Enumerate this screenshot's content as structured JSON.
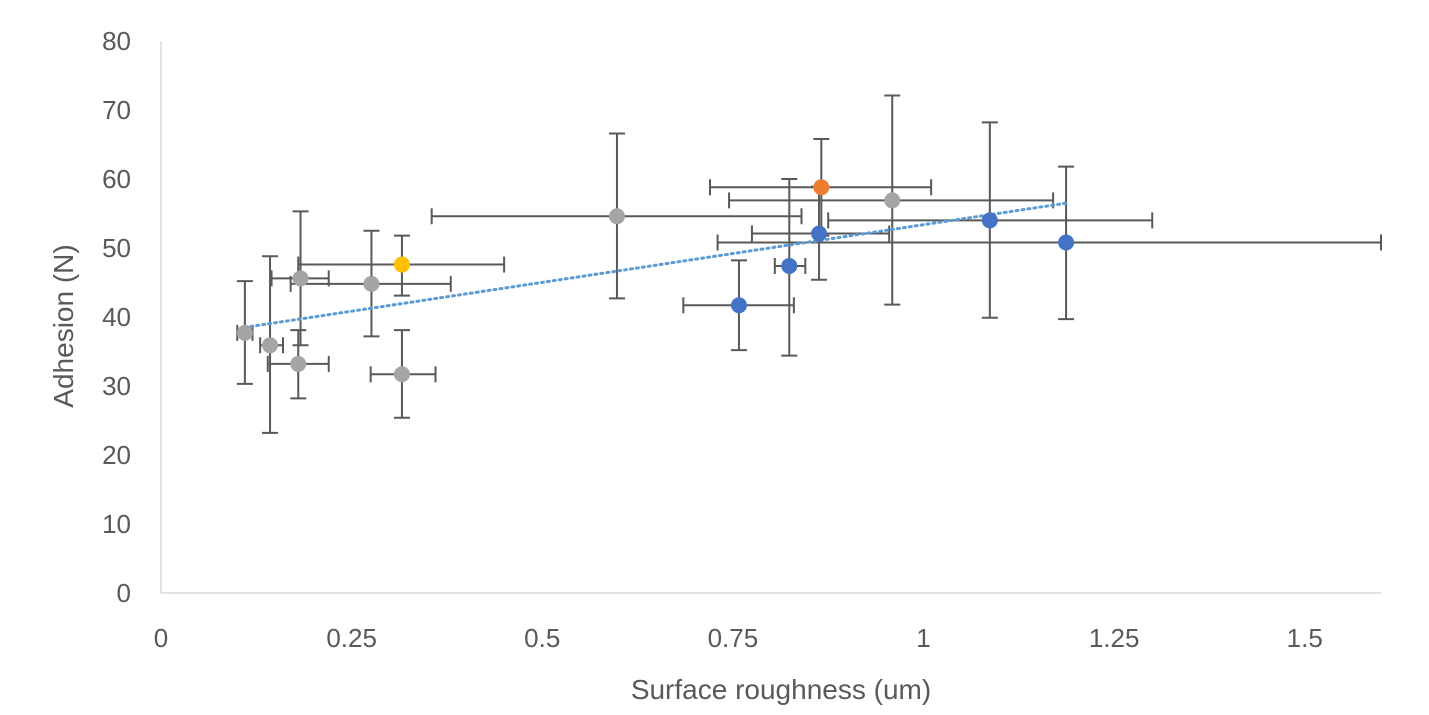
{
  "chart_data": {
    "type": "scatter",
    "title": "",
    "xlabel": "Surface roughness (um)",
    "ylabel": "Adhesion (N)",
    "xlim": [
      0,
      1.6
    ],
    "ylim": [
      0,
      80
    ],
    "xticks": [
      0,
      0.25,
      0.5,
      0.75,
      1,
      1.25,
      1.5
    ],
    "xtick_labels": [
      "0",
      "0.25",
      "0.5",
      "0.75",
      "1",
      "1.25",
      "1.5"
    ],
    "yticks": [
      0,
      10,
      20,
      30,
      40,
      50,
      60,
      70,
      80
    ],
    "ytick_labels": [
      "0",
      "10",
      "20",
      "30",
      "40",
      "50",
      "60",
      "70",
      "80"
    ],
    "grid": false,
    "legend": "none",
    "colors": {
      "gray": "#a5a5a5",
      "blue": "#4472c4",
      "orange": "#ed7d31",
      "yellow": "#ffc000",
      "error_bar": "#595959",
      "trendline": "#5b9bd5",
      "axis": "#d9d9d9"
    },
    "series": [
      {
        "color": "gray",
        "points": [
          {
            "x": 0.11,
            "y": 37.7,
            "xerr": [
              0.1,
              0.12
            ],
            "yerr": [
              30.3,
              45.2
            ]
          },
          {
            "x": 0.143,
            "y": 35.9,
            "xerr": [
              0.13,
              0.16
            ],
            "yerr": [
              23.2,
              48.8
            ]
          },
          {
            "x": 0.18,
            "y": 33.2,
            "xerr": [
              0.14,
              0.22
            ],
            "yerr": [
              28.2,
              38.1
            ]
          },
          {
            "x": 0.183,
            "y": 45.6,
            "xerr": [
              0.145,
              0.22
            ],
            "yerr": [
              35.9,
              55.3
            ]
          },
          {
            "x": 0.276,
            "y": 44.8,
            "xerr": [
              0.17,
              0.38
            ],
            "yerr": [
              37.2,
              52.5
            ]
          },
          {
            "x": 0.316,
            "y": 31.7,
            "xerr": [
              0.275,
              0.36
            ],
            "yerr": [
              25.4,
              38.1
            ]
          },
          {
            "x": 0.598,
            "y": 54.6,
            "xerr": [
              0.355,
              0.84
            ],
            "yerr": [
              42.7,
              66.6
            ]
          },
          {
            "x": 0.959,
            "y": 56.9,
            "xerr": [
              0.745,
              1.17
            ],
            "yerr": [
              41.8,
              72.1
            ]
          }
        ]
      },
      {
        "color": "yellow",
        "points": [
          {
            "x": 0.316,
            "y": 47.6,
            "xerr": [
              0.18,
              0.45
            ],
            "yerr": [
              43.1,
              51.8
            ]
          }
        ]
      },
      {
        "color": "orange",
        "points": [
          {
            "x": 0.866,
            "y": 58.8,
            "xerr": [
              0.72,
              1.01
            ],
            "yerr": [
              51.8,
              65.8
            ]
          }
        ]
      },
      {
        "color": "blue",
        "points": [
          {
            "x": 0.758,
            "y": 41.7,
            "xerr": [
              0.685,
              0.83
            ],
            "yerr": [
              35.2,
              48.2
            ]
          },
          {
            "x": 0.824,
            "y": 47.4,
            "xerr": [
              0.805,
              0.845
            ],
            "yerr": [
              34.4,
              60.0
            ]
          },
          {
            "x": 0.863,
            "y": 52.1,
            "xerr": [
              0.775,
              0.955
            ],
            "yerr": [
              45.4,
              58.9
            ]
          },
          {
            "x": 1.087,
            "y": 54.0,
            "xerr": [
              0.875,
              1.3
            ],
            "yerr": [
              39.9,
              68.2
            ]
          },
          {
            "x": 1.187,
            "y": 50.8,
            "xerr": [
              0.73,
              1.6
            ],
            "yerr": [
              39.7,
              61.8
            ]
          }
        ]
      }
    ],
    "trendline": {
      "type": "linear",
      "x": [
        0.11,
        1.187
      ],
      "y": [
        38.5,
        56.5
      ]
    }
  }
}
